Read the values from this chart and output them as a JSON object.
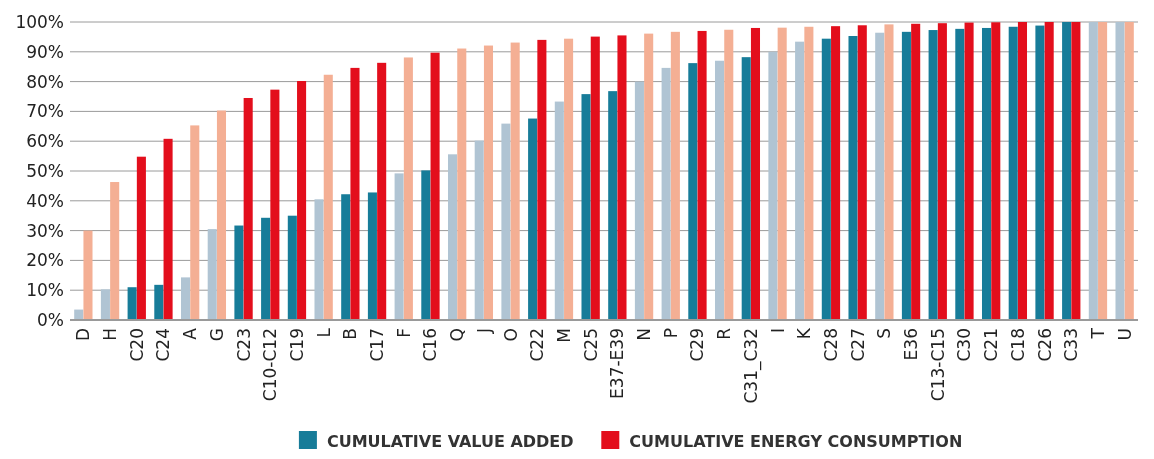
{
  "chart_data": {
    "type": "bar",
    "categories": [
      "D",
      "H",
      "C20",
      "C24",
      "A",
      "G",
      "C23",
      "C10-C12",
      "C19",
      "L",
      "B",
      "C17",
      "F",
      "C16",
      "Q",
      "J",
      "O",
      "C22",
      "M",
      "C25",
      "E37-E39",
      "N",
      "P",
      "C29",
      "R",
      "C31_C32",
      "I",
      "K",
      "C28",
      "C27",
      "S",
      "E36",
      "C13-C15",
      "C30",
      "C21",
      "C18",
      "C26",
      "C33",
      "T",
      "U"
    ],
    "series": [
      {
        "name": "CUMULATIVE VALUE ADDED",
        "color": "#177c99",
        "colors": [
          "#b0c4d3",
          "#b0c4d3",
          "#177c99",
          "#177c99",
          "#b0c4d3",
          "#b0c4d3",
          "#177c99",
          "#177c99",
          "#177c99",
          "#b0c4d3",
          "#177c99",
          "#177c99",
          "#b0c4d3",
          "#177c99",
          "#b0c4d3",
          "#b0c4d3",
          "#b0c4d3",
          "#177c99",
          "#b0c4d3",
          "#177c99",
          "#177c99",
          "#b0c4d3",
          "#b0c4d3",
          "#177c99",
          "#b0c4d3",
          "#177c99",
          "#b0c4d3",
          "#b0c4d3",
          "#177c99",
          "#177c99",
          "#b0c4d3",
          "#177c99",
          "#177c99",
          "#177c99",
          "#177c99",
          "#177c99",
          "#177c99",
          "#177c99",
          "#b0c4d3",
          "#b0c4d3"
        ],
        "values": [
          3.5,
          10.3,
          11,
          11.8,
          14.3,
          30.5,
          31.7,
          34.3,
          35,
          40.5,
          42.2,
          42.8,
          49.2,
          50.2,
          55.6,
          60.2,
          65.9,
          67.6,
          73.3,
          75.8,
          76.8,
          80,
          84.6,
          86.2,
          87,
          88.2,
          90,
          93.4,
          94.4,
          95.3,
          96.4,
          96.7,
          97.3,
          97.7,
          98,
          98.4,
          98.8,
          100,
          100,
          100
        ]
      },
      {
        "name": "CUMULATIVE ENERGY CONSUMPTION",
        "color": "#e30e1c",
        "colors": [
          "#f4af94",
          "#f4af94",
          "#e30e1c",
          "#e30e1c",
          "#f4af94",
          "#f4af94",
          "#e30e1c",
          "#e30e1c",
          "#e30e1c",
          "#f4af94",
          "#e30e1c",
          "#e30e1c",
          "#f4af94",
          "#e30e1c",
          "#f4af94",
          "#f4af94",
          "#f4af94",
          "#e30e1c",
          "#f4af94",
          "#e30e1c",
          "#e30e1c",
          "#f4af94",
          "#f4af94",
          "#e30e1c",
          "#f4af94",
          "#e30e1c",
          "#f4af94",
          "#f4af94",
          "#e30e1c",
          "#e30e1c",
          "#f4af94",
          "#e30e1c",
          "#e30e1c",
          "#e30e1c",
          "#e30e1c",
          "#e30e1c",
          "#e30e1c",
          "#e30e1c",
          "#f4af94",
          "#f4af94"
        ],
        "values": [
          30,
          46.3,
          54.8,
          60.8,
          65.3,
          70.3,
          74.5,
          77.3,
          80.2,
          82.3,
          84.6,
          86.3,
          88.1,
          89.7,
          91.1,
          92.1,
          93.1,
          94,
          94.4,
          95.1,
          95.5,
          96.1,
          96.7,
          97,
          97.4,
          98,
          98.1,
          98.4,
          98.6,
          98.9,
          99.2,
          99.4,
          99.6,
          99.8,
          99.9,
          100,
          100,
          100,
          100,
          100
        ]
      }
    ],
    "ylim": [
      0,
      100
    ],
    "yticks": [
      {
        "value": 0,
        "label": "0%"
      },
      {
        "value": 10,
        "label": "10%"
      },
      {
        "value": 20,
        "label": "20%"
      },
      {
        "value": 30,
        "label": "30%"
      },
      {
        "value": 40,
        "label": "40%"
      },
      {
        "value": 50,
        "label": "50%"
      },
      {
        "value": 60,
        "label": "60%"
      },
      {
        "value": 70,
        "label": "70%"
      },
      {
        "value": 80,
        "label": "80%"
      },
      {
        "value": 90,
        "label": "90%"
      },
      {
        "value": 100,
        "label": "100%"
      }
    ],
    "grid": "y",
    "legend": "bottom"
  }
}
